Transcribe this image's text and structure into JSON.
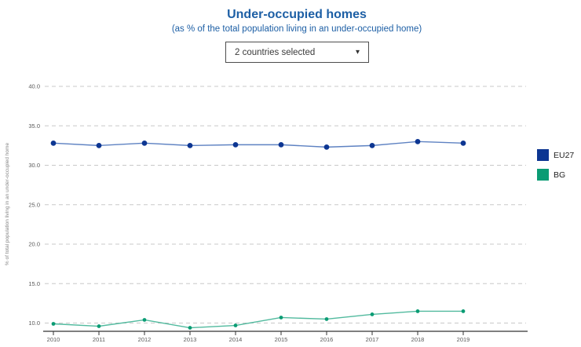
{
  "header": {
    "title": "Under-occupied homes",
    "subtitle": "(as % of the total population living in an under-occupied home)",
    "title_color": "#1d5fa5"
  },
  "dropdown": {
    "value": "2 countries selected",
    "caret_icon": "▾"
  },
  "chart_data": {
    "type": "line",
    "x": [
      2010,
      2011,
      2012,
      2013,
      2014,
      2015,
      2016,
      2017,
      2018,
      2019
    ],
    "series": [
      {
        "name": "EU27",
        "values": [
          32.8,
          32.5,
          32.8,
          32.5,
          32.6,
          32.6,
          32.3,
          32.5,
          33.0,
          32.8
        ],
        "marker_color": "#0d3692",
        "line_color": "#4d74bb",
        "marker_radius": 3.4
      },
      {
        "name": "BG",
        "values": [
          9.9,
          9.6,
          10.4,
          9.4,
          9.7,
          10.7,
          10.5,
          11.1,
          11.5,
          11.5
        ],
        "marker_color": "#0b9c74",
        "line_color": "#3eb393",
        "marker_radius": 2.4
      }
    ],
    "title": "Under-occupied homes",
    "xlabel": "",
    "ylabel": "% of total population living in an under-occupied home",
    "yticks": [
      10.0,
      15.0,
      20.0,
      25.0,
      30.0,
      35.0,
      40.0
    ],
    "ylim": [
      9.0,
      41.5
    ],
    "grid": "dashed horizontal",
    "legend_position": "right",
    "colors": {
      "gridline": "#c8c8c8",
      "axis_line": "#333333",
      "tick_label": "#5a5a5a",
      "axis_label": "#888888"
    }
  }
}
